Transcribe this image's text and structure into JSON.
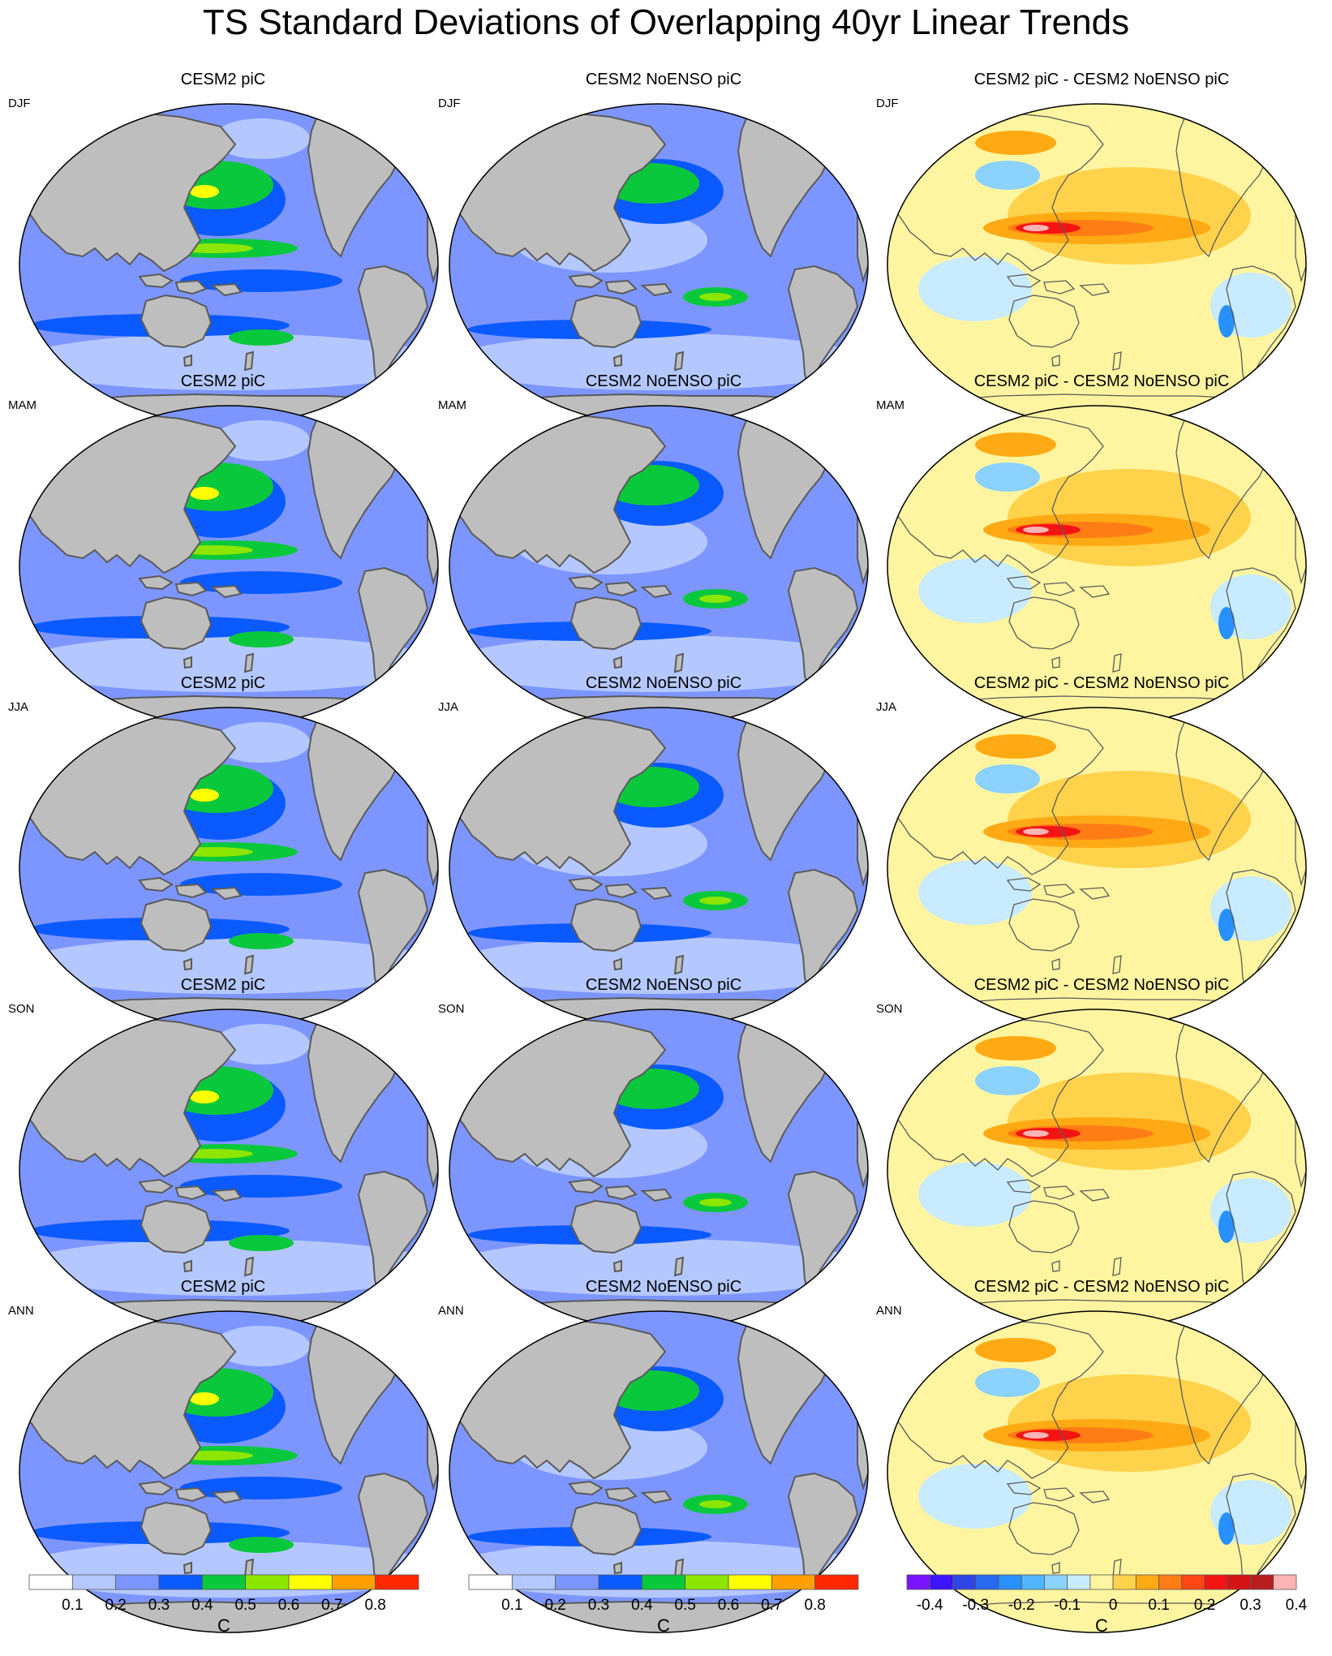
{
  "title": "TS Standard Deviations of Overlapping 40yr Linear Trends",
  "columns": [
    {
      "title": "CESM2 piC",
      "type": "std"
    },
    {
      "title": "CESM2 NoENSO piC",
      "type": "std"
    },
    {
      "title": "CESM2 piC - CESM2 NoENSO piC",
      "type": "diff"
    }
  ],
  "seasons": [
    "DJF",
    "MAM",
    "JJA",
    "SON",
    "ANN"
  ],
  "colorbars": [
    {
      "unit": "C",
      "colors": [
        "#ffffff",
        "#b4c8ff",
        "#7d96ff",
        "#0a5aff",
        "#0ac83c",
        "#8ce600",
        "#ffff00",
        "#ffa000",
        "#ff2800"
      ],
      "ticks": [
        "0.1",
        "0.2",
        "0.3",
        "0.4",
        "0.5",
        "0.6",
        "0.7",
        "0.8"
      ]
    },
    {
      "unit": "C",
      "colors": [
        "#ffffff",
        "#b4c8ff",
        "#7d96ff",
        "#0a5aff",
        "#0ac83c",
        "#8ce600",
        "#ffff00",
        "#ffa000",
        "#ff2800"
      ],
      "ticks": [
        "0.1",
        "0.2",
        "0.3",
        "0.4",
        "0.5",
        "0.6",
        "0.7",
        "0.8"
      ]
    },
    {
      "unit": "C",
      "colors": [
        "#7814ff",
        "#3c14ff",
        "#2d46e6",
        "#2869f0",
        "#2891ff",
        "#50b4ff",
        "#8cd2ff",
        "#c8ebff",
        "#fff5a0",
        "#ffd24b",
        "#ffaa14",
        "#ff7d14",
        "#ff4614",
        "#f51414",
        "#d21414",
        "#b91e1e",
        "#ffb4b4"
      ],
      "ticks": [
        "-0.4",
        "-0.3",
        "-0.2",
        "-0.1",
        "0",
        "0.1",
        "0.2",
        "0.3",
        "0.4"
      ]
    }
  ],
  "colors": {
    "land": "#bebebe",
    "coast": "#5a5a5a"
  }
}
